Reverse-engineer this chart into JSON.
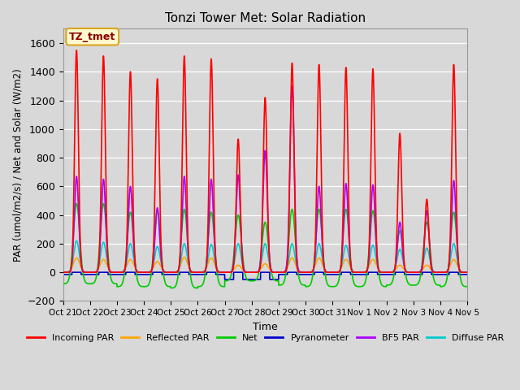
{
  "title": "Tonzi Tower Met: Solar Radiation",
  "ylabel": "PAR (umol/m2/s) / Net and Solar (W/m2)",
  "xlabel": "Time",
  "ylim": [
    -200,
    1700
  ],
  "annotation": "TZ_tmet",
  "annotation_color": "#8B0000",
  "annotation_bg": "#FFFACD",
  "annotation_border": "#DAA520",
  "background_color": "#D8D8D8",
  "plot_bg": "#D8D8D8",
  "grid_color": "white",
  "series": {
    "incoming_par": {
      "color": "#FF0000",
      "label": "Incoming PAR",
      "lw": 1.2
    },
    "reflected_par": {
      "color": "#FFA500",
      "label": "Reflected PAR",
      "lw": 1.2
    },
    "net": {
      "color": "#00CC00",
      "label": "Net",
      "lw": 1.2
    },
    "pyranometer": {
      "color": "#0000CC",
      "label": "Pyranometer",
      "lw": 1.2
    },
    "bf5_par": {
      "color": "#AA00FF",
      "label": "BF5 PAR",
      "lw": 1.2
    },
    "diffuse_par": {
      "color": "#00CCCC",
      "label": "Diffuse PAR",
      "lw": 1.2
    }
  },
  "tick_labels": [
    "Oct 21",
    "Oct 22",
    "Oct 23",
    "Oct 24",
    "Oct 25",
    "Oct 26",
    "Oct 27",
    "Oct 28",
    "Oct 29",
    "Oct 30",
    "Oct 31",
    "Nov 1",
    "Nov 2",
    "Nov 3",
    "Nov 4",
    "Nov 5"
  ],
  "num_days": 15,
  "points_per_day": 288,
  "incoming_peaks": [
    1550,
    1510,
    1400,
    1350,
    1510,
    1490,
    930,
    1220,
    1460,
    1450,
    1430,
    1420,
    970,
    510,
    1450
  ],
  "bf5_peaks": [
    670,
    650,
    600,
    450,
    670,
    650,
    680,
    850,
    1300,
    600,
    620,
    610,
    350,
    430,
    640
  ],
  "net_peaks": [
    480,
    480,
    420,
    430,
    440,
    420,
    400,
    350,
    440,
    440,
    440,
    430,
    290,
    350,
    420
  ],
  "reflected_peaks": [
    100,
    90,
    90,
    75,
    105,
    100,
    50,
    60,
    100,
    100,
    90,
    90,
    50,
    50,
    90
  ],
  "diffuse_peaks": [
    220,
    210,
    200,
    180,
    200,
    195,
    200,
    200,
    200,
    200,
    190,
    190,
    160,
    170,
    200
  ],
  "net_night_min": [
    -80,
    -80,
    -100,
    -100,
    -110,
    -100,
    -60,
    -60,
    -90,
    -100,
    -100,
    -100,
    -90,
    -90,
    -100
  ],
  "pyr_night": [
    -15,
    -15,
    -15,
    -15,
    -15,
    -15,
    -50,
    -50,
    -15,
    -15,
    -15,
    -15,
    -15,
    -15,
    -15
  ]
}
